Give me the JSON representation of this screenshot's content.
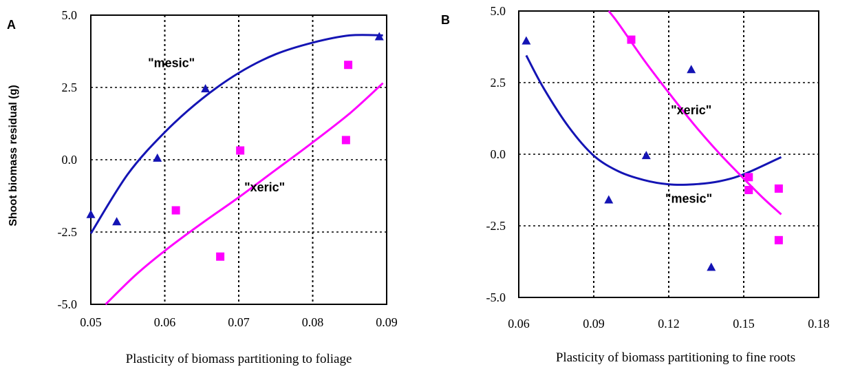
{
  "chart_data": [
    {
      "type": "scatter",
      "panel_label": "A",
      "xlabel": "Plasticity of biomass partitioning to foliage",
      "ylabel": "Shoot biomass residual (g)",
      "xlim": [
        0.05,
        0.09
      ],
      "ylim": [
        -5.0,
        5.0
      ],
      "xticks": [
        "0.05",
        "0.06",
        "0.07",
        "0.08",
        "0.09"
      ],
      "yticks": [
        "-5.0",
        "-2.5",
        "0.0",
        "2.5",
        "5.0"
      ],
      "grid": "dotted",
      "series": [
        {
          "color": "#1414b4",
          "marker": "triangle",
          "points": [
            [
              0.05,
              -1.9
            ],
            [
              0.0535,
              -2.15
            ],
            [
              0.059,
              0.05
            ],
            [
              0.0655,
              2.45
            ],
            [
              0.089,
              4.25
            ]
          ],
          "fit": [
            [
              0.05,
              -2.55
            ],
            [
              0.055,
              -0.5
            ],
            [
              0.06,
              0.95
            ],
            [
              0.065,
              2.1
            ],
            [
              0.07,
              3.0
            ],
            [
              0.075,
              3.65
            ],
            [
              0.08,
              4.05
            ],
            [
              0.085,
              4.3
            ],
            [
              0.0895,
              4.3
            ]
          ]
        },
        {
          "color": "#ff00ff",
          "marker": "square",
          "points": [
            [
              0.0615,
              -1.75
            ],
            [
              0.0675,
              -3.35
            ],
            [
              0.0702,
              0.32
            ],
            [
              0.0845,
              0.68
            ],
            [
              0.0848,
              3.28
            ]
          ],
          "fit": [
            [
              0.052,
              -5.0
            ],
            [
              0.056,
              -4.0
            ],
            [
              0.06,
              -3.15
            ],
            [
              0.065,
              -2.2
            ],
            [
              0.07,
              -1.3
            ],
            [
              0.075,
              -0.35
            ],
            [
              0.08,
              0.6
            ],
            [
              0.085,
              1.6
            ],
            [
              0.0895,
              2.65
            ]
          ]
        }
      ],
      "annotations": [
        {
          "text": "\"mesic\"",
          "x": 0.0609,
          "y": 3.2
        },
        {
          "text": "\"xeric\"",
          "x": 0.0735,
          "y": -1.1
        }
      ]
    },
    {
      "type": "scatter",
      "panel_label": "B",
      "xlabel": "Plasticity of biomass partitioning to fine roots",
      "ylabel": "",
      "xlim": [
        0.06,
        0.18
      ],
      "ylim": [
        -5.0,
        5.0
      ],
      "xticks": [
        "0.06",
        "0.09",
        "0.12",
        "0.15",
        "0.18"
      ],
      "yticks": [
        "-5.0",
        "-2.5",
        "0.0",
        "2.5",
        "5.0"
      ],
      "grid": "dotted",
      "series": [
        {
          "color": "#1414b4",
          "marker": "triangle",
          "points": [
            [
              0.063,
              3.95
            ],
            [
              0.096,
              -1.6
            ],
            [
              0.111,
              -0.05
            ],
            [
              0.129,
              2.95
            ],
            [
              0.137,
              -3.95
            ]
          ],
          "fit": [
            [
              0.063,
              3.45
            ],
            [
              0.07,
              2.3
            ],
            [
              0.08,
              0.95
            ],
            [
              0.09,
              -0.05
            ],
            [
              0.1,
              -0.6
            ],
            [
              0.11,
              -0.9
            ],
            [
              0.12,
              -1.05
            ],
            [
              0.13,
              -1.05
            ],
            [
              0.14,
              -0.95
            ],
            [
              0.15,
              -0.7
            ],
            [
              0.165,
              -0.1
            ]
          ]
        },
        {
          "color": "#ff00ff",
          "marker": "square",
          "points": [
            [
              0.105,
              4.0
            ],
            [
              0.152,
              -0.8
            ],
            [
              0.152,
              -1.25
            ],
            [
              0.164,
              -1.2
            ],
            [
              0.164,
              -3.0
            ]
          ],
          "fit": [
            [
              0.096,
              5.0
            ],
            [
              0.1,
              4.55
            ],
            [
              0.11,
              3.3
            ],
            [
              0.12,
              2.15
            ],
            [
              0.13,
              1.05
            ],
            [
              0.14,
              0.05
            ],
            [
              0.15,
              -0.85
            ],
            [
              0.158,
              -1.55
            ],
            [
              0.165,
              -2.1
            ]
          ]
        }
      ],
      "annotations": [
        {
          "text": "\"xeric\"",
          "x": 0.129,
          "y": 1.4
        },
        {
          "text": "\"mesic\"",
          "x": 0.128,
          "y": -1.7
        }
      ]
    }
  ]
}
